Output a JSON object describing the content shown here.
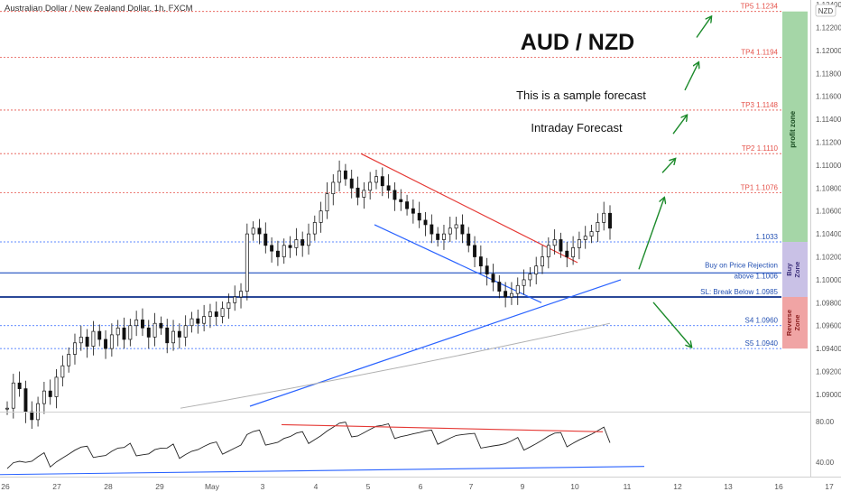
{
  "header": {
    "symbol_title": "Australian Dollar / New Zealand Dollar, 1h, FXCM",
    "currency_badge": "NZD"
  },
  "annotations": {
    "pair_title": "AUD / NZD",
    "sample_text": "This is a sample forecast",
    "forecast_type": "Intraday Forecast",
    "profit_zone_label": "profit zone",
    "buy_zone_label": "Buy Zone",
    "reverse_zone_label": "Reverse Zone",
    "buy_zone_label_lines": [
      "Buy",
      "Zone"
    ],
    "reverse_zone_label_lines": [
      "Reverse",
      "Zone"
    ]
  },
  "colors": {
    "target_line": "#e5534b",
    "level_line": "#2962ff",
    "up_arrow": "#1b8a2a",
    "down_arrow": "#1b8a2a",
    "profit_zone": "#a5d6a7",
    "buy_zone": "#c9c1e6",
    "reverse_zone": "#f0a4a4",
    "candle": "#111111",
    "trend_red": "#e53935",
    "trend_blue": "#2962ff",
    "ma_gray": "#b0b0b0"
  },
  "chart_data": {
    "type": "candlestick",
    "title": "Australian Dollar / New Zealand Dollar, 1h, FXCM",
    "y_axis": {
      "ticks": [
        1.124,
        1.122,
        1.12,
        1.118,
        1.116,
        1.114,
        1.112,
        1.11,
        1.108,
        1.106,
        1.104,
        1.102,
        1.1,
        1.098,
        1.096,
        1.094,
        1.092,
        1.09
      ],
      "tick_labels": [
        "1.12400",
        "1.12200",
        "1.12000",
        "1.11800",
        "1.11600",
        "1.11400",
        "1.11200",
        "1.11000",
        "1.10800",
        "1.10600",
        "1.10400",
        "1.10200",
        "1.10000",
        "1.09800",
        "1.09600",
        "1.09400",
        "1.09200",
        "1.09000"
      ],
      "range": [
        1.0885,
        1.1244
      ]
    },
    "x_axis": {
      "labels": [
        "26",
        "27",
        "28",
        "29",
        "May",
        "3",
        "4",
        "5",
        "6",
        "7",
        "9",
        "10",
        "11",
        "12",
        "13",
        "16",
        "17"
      ]
    },
    "levels": [
      {
        "label": "TP5 1.1234",
        "value": 1.1234,
        "kind": "target"
      },
      {
        "label": "TP4 1.1194",
        "value": 1.1194,
        "kind": "target"
      },
      {
        "label": "TP3 1.1148",
        "value": 1.1148,
        "kind": "target"
      },
      {
        "label": "TP2 1.1110",
        "value": 1.111,
        "kind": "target"
      },
      {
        "label": "TP1 1.1076",
        "value": 1.1076,
        "kind": "target"
      },
      {
        "label": "1.1033",
        "value": 1.1033,
        "kind": "pivot"
      },
      {
        "label": "Buy on Price Rejection",
        "label2": "above 1.1006",
        "value": 1.1006,
        "kind": "buy"
      },
      {
        "label": "SL: Break Below 1.0985",
        "value": 1.0985,
        "kind": "stop"
      },
      {
        "label": "S4 1.0960",
        "value": 1.096,
        "kind": "support"
      },
      {
        "label": "S5 1.0940",
        "value": 1.094,
        "kind": "support"
      }
    ],
    "candles_close": [
      1.0888,
      1.091,
      1.0905,
      1.0885,
      1.0878,
      1.0892,
      1.0903,
      1.0898,
      1.0915,
      1.0925,
      1.0935,
      1.0945,
      1.095,
      1.0942,
      1.0955,
      1.0948,
      1.094,
      1.0952,
      1.0958,
      1.0948,
      1.096,
      1.0965,
      1.0958,
      1.095,
      1.0962,
      1.0958,
      1.0945,
      1.0955,
      1.095,
      1.096,
      1.0966,
      1.0962,
      1.0968,
      1.0972,
      1.0968,
      1.0975,
      1.098,
      1.0985,
      1.099,
      1.104,
      1.1045,
      1.104,
      1.103,
      1.1025,
      1.102,
      1.103,
      1.1028,
      1.1035,
      1.103,
      1.104,
      1.105,
      1.106,
      1.1075,
      1.1085,
      1.1095,
      1.1088,
      1.108,
      1.1072,
      1.1078,
      1.1085,
      1.109,
      1.1082,
      1.1078,
      1.107,
      1.1068,
      1.1062,
      1.1058,
      1.1052,
      1.1048,
      1.104,
      1.1035,
      1.104,
      1.1045,
      1.1048,
      1.104,
      1.103,
      1.102,
      1.1012,
      1.1005,
      1.0998,
      1.099,
      1.0985,
      1.0988,
      1.0995,
      1.1,
      1.1005,
      1.1012,
      1.102,
      1.103,
      1.1035,
      1.1025,
      1.102,
      1.1028,
      1.1035,
      1.1038,
      1.1042,
      1.105,
      1.1058,
      1.1045
    ],
    "ma_line": {
      "from": 1.0888,
      "to": 1.0962
    },
    "trendlines": [
      {
        "name": "descending resistance",
        "color": "red",
        "from": 1.111,
        "to": 1.1015
      },
      {
        "name": "descending support",
        "color": "blue",
        "from": 1.1048,
        "to": 1.098
      },
      {
        "name": "ascending support",
        "color": "blue",
        "from": 1.0888,
        "to": 1.1
      }
    ],
    "projection": {
      "up_steps": [
        1.1006,
        1.1076,
        1.111,
        1.1148,
        1.1194,
        1.1234
      ],
      "down": [
        1.0985,
        1.094
      ]
    },
    "rsi": {
      "tick_labels": [
        "80.00",
        "40.00"
      ],
      "ticks": [
        80,
        40
      ],
      "range": [
        26,
        88
      ]
    }
  }
}
